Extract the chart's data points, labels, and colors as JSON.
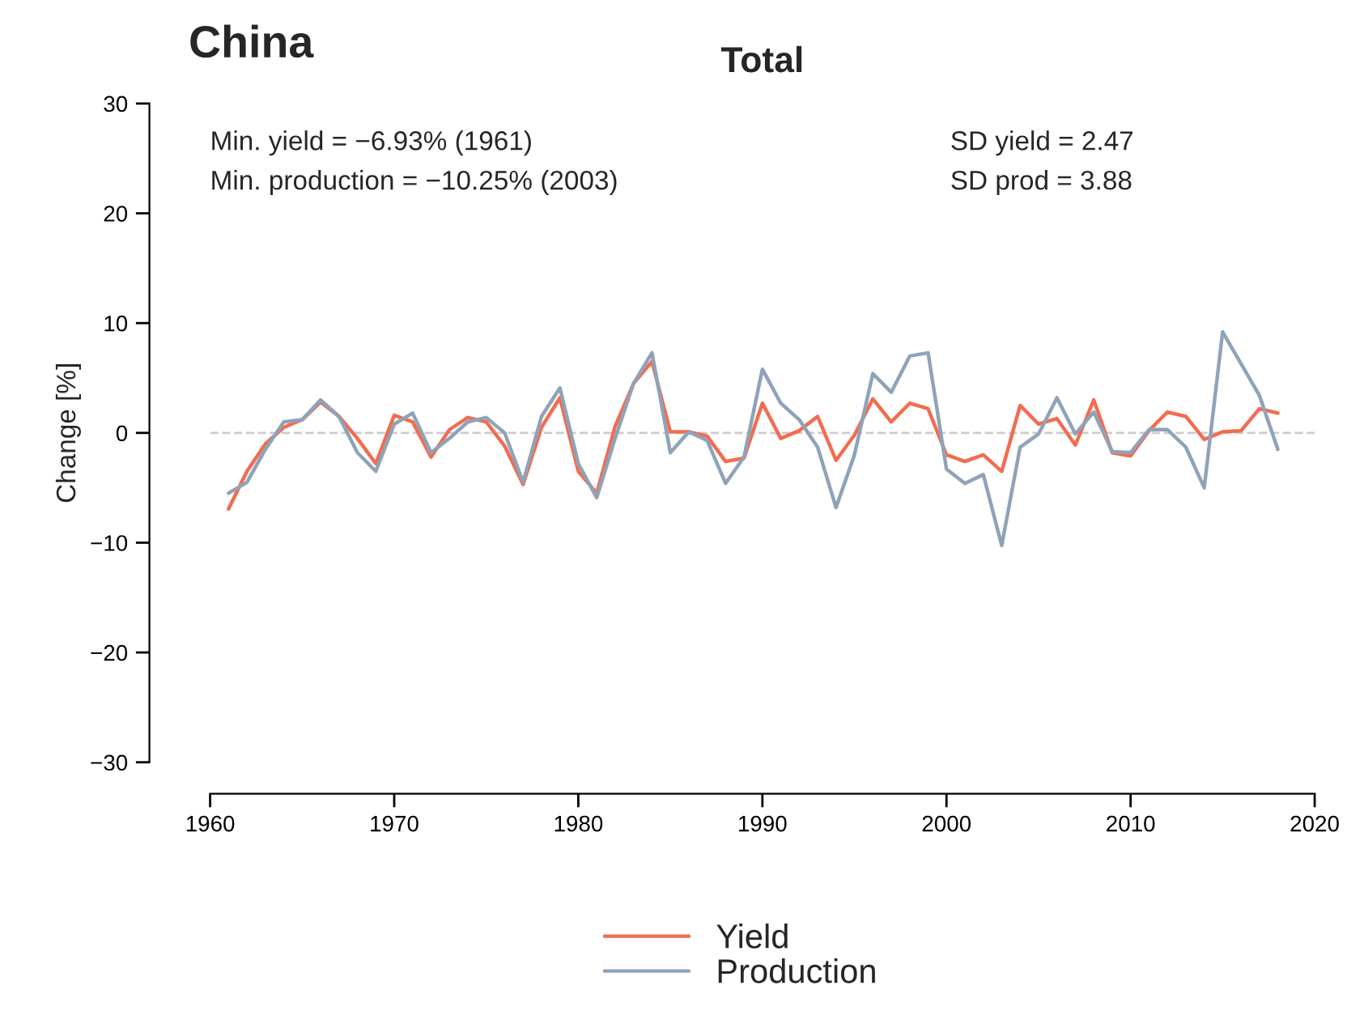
{
  "chart_data": {
    "type": "line",
    "title": "Total",
    "ylabel": "Change [%]",
    "annotations": [
      "China",
      "Min. yield = −6.93% (1961)",
      "Min. production = −10.25% (2003)",
      "SD yield = 2.47",
      "SD prod = 3.88"
    ],
    "x": [
      1961,
      1962,
      1963,
      1964,
      1965,
      1966,
      1967,
      1968,
      1969,
      1970,
      1971,
      1972,
      1973,
      1974,
      1975,
      1976,
      1977,
      1978,
      1979,
      1980,
      1981,
      1982,
      1983,
      1984,
      1985,
      1986,
      1987,
      1988,
      1989,
      1990,
      1991,
      1992,
      1993,
      1994,
      1995,
      1996,
      1997,
      1998,
      1999,
      2000,
      2001,
      2002,
      2003,
      2004,
      2005,
      2006,
      2007,
      2008,
      2009,
      2010,
      2011,
      2012,
      2013,
      2014,
      2015,
      2016,
      2017,
      2018
    ],
    "series": [
      {
        "name": "Yield",
        "color": "#f26c50",
        "values": [
          -6.93,
          -3.5,
          -1,
          0.5,
          1.2,
          2.8,
          1.5,
          -0.5,
          -2.8,
          1.6,
          1.0,
          -2.2,
          0.3,
          1.4,
          1.0,
          -1.2,
          -4.7,
          0.5,
          3.2,
          -3.5,
          -5.5,
          0.6,
          4.5,
          6.5,
          0.1,
          0.1,
          -0.3,
          -2.6,
          -2.3,
          2.7,
          -0.5,
          0.2,
          1.5,
          -2.5,
          -0.2,
          3.1,
          1.0,
          2.7,
          2.2,
          -2.0,
          -2.6,
          -2.0,
          -3.5,
          2.5,
          0.8,
          1.3,
          -1.1,
          3.0,
          -1.8,
          -2.1,
          0.2,
          1.9,
          1.5,
          -0.6,
          0.1,
          0.2,
          2.2,
          1.8
        ]
      },
      {
        "name": "Production",
        "color": "#8fa3b8",
        "values": [
          -5.5,
          -4.5,
          -1.5,
          1.0,
          1.2,
          3.0,
          1.5,
          -1.8,
          -3.5,
          0.8,
          1.8,
          -1.8,
          -0.5,
          1.0,
          1.4,
          0.0,
          -4.5,
          1.5,
          4.1,
          -2.8,
          -5.9,
          -0.5,
          4.5,
          7.3,
          -1.8,
          0.1,
          -0.7,
          -4.6,
          -2.2,
          5.8,
          2.7,
          1.2,
          -1.3,
          -6.8,
          -2.0,
          5.4,
          3.7,
          7.0,
          7.3,
          -3.3,
          -4.6,
          -3.8,
          -10.25,
          -1.3,
          -0.1,
          3.2,
          -0.1,
          1.9,
          -1.7,
          -1.8,
          0.3,
          0.3,
          -1.3,
          -5.0,
          9.2,
          6.3,
          3.4,
          -1.5
        ]
      }
    ],
    "xlim": [
      1960,
      2020
    ],
    "xticks": [
      1960,
      1970,
      1980,
      1990,
      2000,
      2010,
      2020
    ],
    "ylim": [
      -30,
      30
    ],
    "yticks": [
      -30,
      -20,
      -10,
      0,
      10,
      20,
      30
    ],
    "ref_lines": [
      {
        "axis": "y",
        "value": 0,
        "color": "#cccccc",
        "line_style": "dashed"
      }
    ],
    "grid": false,
    "legend": "bottom",
    "marker": "none",
    "line_style": "solid"
  }
}
